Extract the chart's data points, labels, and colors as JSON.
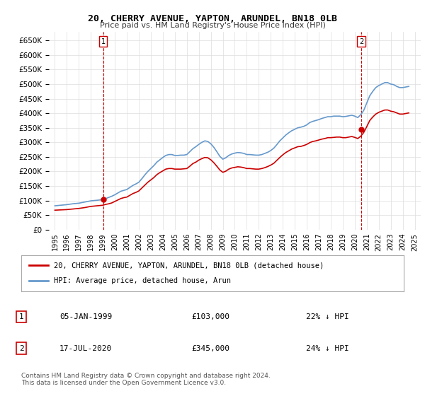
{
  "title": "20, CHERRY AVENUE, YAPTON, ARUNDEL, BN18 0LB",
  "subtitle": "Price paid vs. HM Land Registry's House Price Index (HPI)",
  "ylabel_ticks": [
    "£0",
    "£50K",
    "£100K",
    "£150K",
    "£200K",
    "£250K",
    "£300K",
    "£350K",
    "£400K",
    "£450K",
    "£500K",
    "£550K",
    "£600K",
    "£650K"
  ],
  "ytick_values": [
    0,
    50000,
    100000,
    150000,
    200000,
    250000,
    300000,
    350000,
    400000,
    450000,
    500000,
    550000,
    600000,
    650000
  ],
  "ylim": [
    0,
    680000
  ],
  "xlim_start": 1994.5,
  "xlim_end": 2025.5,
  "hpi_color": "#6699CC",
  "price_color": "#CC0000",
  "sale1_x": 1999.03,
  "sale1_y": 103000,
  "sale2_x": 2020.54,
  "sale2_y": 345000,
  "legend_label1": "20, CHERRY AVENUE, YAPTON, ARUNDEL, BN18 0LB (detached house)",
  "legend_label2": "HPI: Average price, detached house, Arun",
  "table_row1": [
    "1",
    "05-JAN-1999",
    "£103,000",
    "22% ↓ HPI"
  ],
  "table_row2": [
    "2",
    "17-JUL-2020",
    "£345,000",
    "24% ↓ HPI"
  ],
  "footnote": "Contains HM Land Registry data © Crown copyright and database right 2024.\nThis data is licensed under the Open Government Licence v3.0.",
  "bg_color": "#FFFFFF",
  "grid_color": "#DDDDDD",
  "hpi_data_x": [
    1995,
    1995.25,
    1995.5,
    1995.75,
    1996,
    1996.25,
    1996.5,
    1996.75,
    1997,
    1997.25,
    1997.5,
    1997.75,
    1998,
    1998.25,
    1998.5,
    1998.75,
    1999,
    1999.25,
    1999.5,
    1999.75,
    2000,
    2000.25,
    2000.5,
    2000.75,
    2001,
    2001.25,
    2001.5,
    2001.75,
    2002,
    2002.25,
    2002.5,
    2002.75,
    2003,
    2003.25,
    2003.5,
    2003.75,
    2004,
    2004.25,
    2004.5,
    2004.75,
    2005,
    2005.25,
    2005.5,
    2005.75,
    2006,
    2006.25,
    2006.5,
    2006.75,
    2007,
    2007.25,
    2007.5,
    2007.75,
    2008,
    2008.25,
    2008.5,
    2008.75,
    2009,
    2009.25,
    2009.5,
    2009.75,
    2010,
    2010.25,
    2010.5,
    2010.75,
    2011,
    2011.25,
    2011.5,
    2011.75,
    2012,
    2012.25,
    2012.5,
    2012.75,
    2013,
    2013.25,
    2013.5,
    2013.75,
    2014,
    2014.25,
    2014.5,
    2014.75,
    2015,
    2015.25,
    2015.5,
    2015.75,
    2016,
    2016.25,
    2016.5,
    2016.75,
    2017,
    2017.25,
    2017.5,
    2017.75,
    2018,
    2018.25,
    2018.5,
    2018.75,
    2019,
    2019.25,
    2019.5,
    2019.75,
    2020,
    2020.25,
    2020.5,
    2020.75,
    2021,
    2021.25,
    2021.5,
    2021.75,
    2022,
    2022.25,
    2022.5,
    2022.75,
    2023,
    2023.25,
    2023.5,
    2023.75,
    2024,
    2024.25,
    2024.5
  ],
  "hpi_data_y": [
    82000,
    83000,
    84000,
    85000,
    86000,
    87500,
    89000,
    90000,
    91000,
    93000,
    95000,
    97000,
    99000,
    100000,
    101000,
    102000,
    103000,
    107000,
    111000,
    115000,
    120000,
    126000,
    132000,
    135000,
    138000,
    145000,
    152000,
    157000,
    163000,
    175000,
    188000,
    200000,
    210000,
    220000,
    232000,
    240000,
    248000,
    255000,
    258000,
    258000,
    255000,
    255000,
    256000,
    256000,
    258000,
    268000,
    278000,
    285000,
    293000,
    300000,
    305000,
    303000,
    295000,
    283000,
    268000,
    252000,
    242000,
    247000,
    255000,
    260000,
    263000,
    265000,
    264000,
    262000,
    258000,
    258000,
    257000,
    256000,
    256000,
    258000,
    262000,
    266000,
    272000,
    280000,
    292000,
    305000,
    315000,
    325000,
    333000,
    340000,
    345000,
    350000,
    352000,
    355000,
    360000,
    368000,
    372000,
    375000,
    378000,
    382000,
    385000,
    388000,
    388000,
    390000,
    390000,
    390000,
    388000,
    389000,
    391000,
    393000,
    390000,
    385000,
    395000,
    410000,
    435000,
    460000,
    475000,
    488000,
    495000,
    500000,
    505000,
    505000,
    500000,
    498000,
    492000,
    488000,
    488000,
    490000,
    492000
  ],
  "price_data_x": [
    1995,
    1995.25,
    1995.5,
    1995.75,
    1996,
    1996.25,
    1996.5,
    1996.75,
    1997,
    1997.25,
    1997.5,
    1997.75,
    1998,
    1998.25,
    1998.5,
    1998.75,
    1999,
    1999.25,
    1999.5,
    1999.75,
    2000,
    2000.25,
    2000.5,
    2000.75,
    2001,
    2001.25,
    2001.5,
    2001.75,
    2002,
    2002.25,
    2002.5,
    2002.75,
    2003,
    2003.25,
    2003.5,
    2003.75,
    2004,
    2004.25,
    2004.5,
    2004.75,
    2005,
    2005.25,
    2005.5,
    2005.75,
    2006,
    2006.25,
    2006.5,
    2006.75,
    2007,
    2007.25,
    2007.5,
    2007.75,
    2008,
    2008.25,
    2008.5,
    2008.75,
    2009,
    2009.25,
    2009.5,
    2009.75,
    2010,
    2010.25,
    2010.5,
    2010.75,
    2011,
    2011.25,
    2011.5,
    2011.75,
    2012,
    2012.25,
    2012.5,
    2012.75,
    2013,
    2013.25,
    2013.5,
    2013.75,
    2014,
    2014.25,
    2014.5,
    2014.75,
    2015,
    2015.25,
    2015.5,
    2015.75,
    2016,
    2016.25,
    2016.5,
    2016.75,
    2017,
    2017.25,
    2017.5,
    2017.75,
    2018,
    2018.25,
    2018.5,
    2018.75,
    2019,
    2019.25,
    2019.5,
    2019.75,
    2020,
    2020.25,
    2020.5,
    2020.75,
    2021,
    2021.25,
    2021.5,
    2021.75,
    2022,
    2022.25,
    2022.5,
    2022.75,
    2023,
    2023.25,
    2023.5,
    2023.75,
    2024,
    2024.25,
    2024.5
  ],
  "price_data_y": [
    67000,
    67500,
    68000,
    68500,
    69000,
    70000,
    71000,
    72000,
    73000,
    74500,
    76000,
    78000,
    80000,
    81000,
    82000,
    83000,
    84000,
    87000,
    89000,
    92000,
    97000,
    102000,
    107000,
    110000,
    112000,
    118000,
    124000,
    128000,
    133000,
    143000,
    153000,
    163000,
    171000,
    179000,
    189000,
    196000,
    202000,
    208000,
    210000,
    210000,
    208000,
    208000,
    208000,
    209000,
    210000,
    218000,
    227000,
    232000,
    239000,
    244000,
    248000,
    247000,
    240000,
    230000,
    218000,
    205000,
    197000,
    201000,
    208000,
    212000,
    214000,
    216000,
    215000,
    213000,
    210000,
    210000,
    209000,
    208000,
    208000,
    210000,
    213000,
    217000,
    222000,
    228000,
    238000,
    248000,
    257000,
    265000,
    271000,
    277000,
    281000,
    285000,
    286000,
    289000,
    293000,
    299000,
    303000,
    305000,
    308000,
    311000,
    313000,
    316000,
    316000,
    317000,
    318000,
    318000,
    316000,
    316000,
    318000,
    320000,
    317000,
    313000,
    321000,
    334000,
    354000,
    375000,
    387000,
    397000,
    403000,
    407000,
    411000,
    411000,
    407000,
    405000,
    401000,
    397000,
    397000,
    399000,
    401000
  ],
  "xticks": [
    1995,
    1996,
    1997,
    1998,
    1999,
    2000,
    2001,
    2002,
    2003,
    2004,
    2005,
    2006,
    2007,
    2008,
    2009,
    2010,
    2011,
    2012,
    2013,
    2014,
    2015,
    2016,
    2017,
    2018,
    2019,
    2020,
    2021,
    2022,
    2023,
    2024,
    2025
  ]
}
